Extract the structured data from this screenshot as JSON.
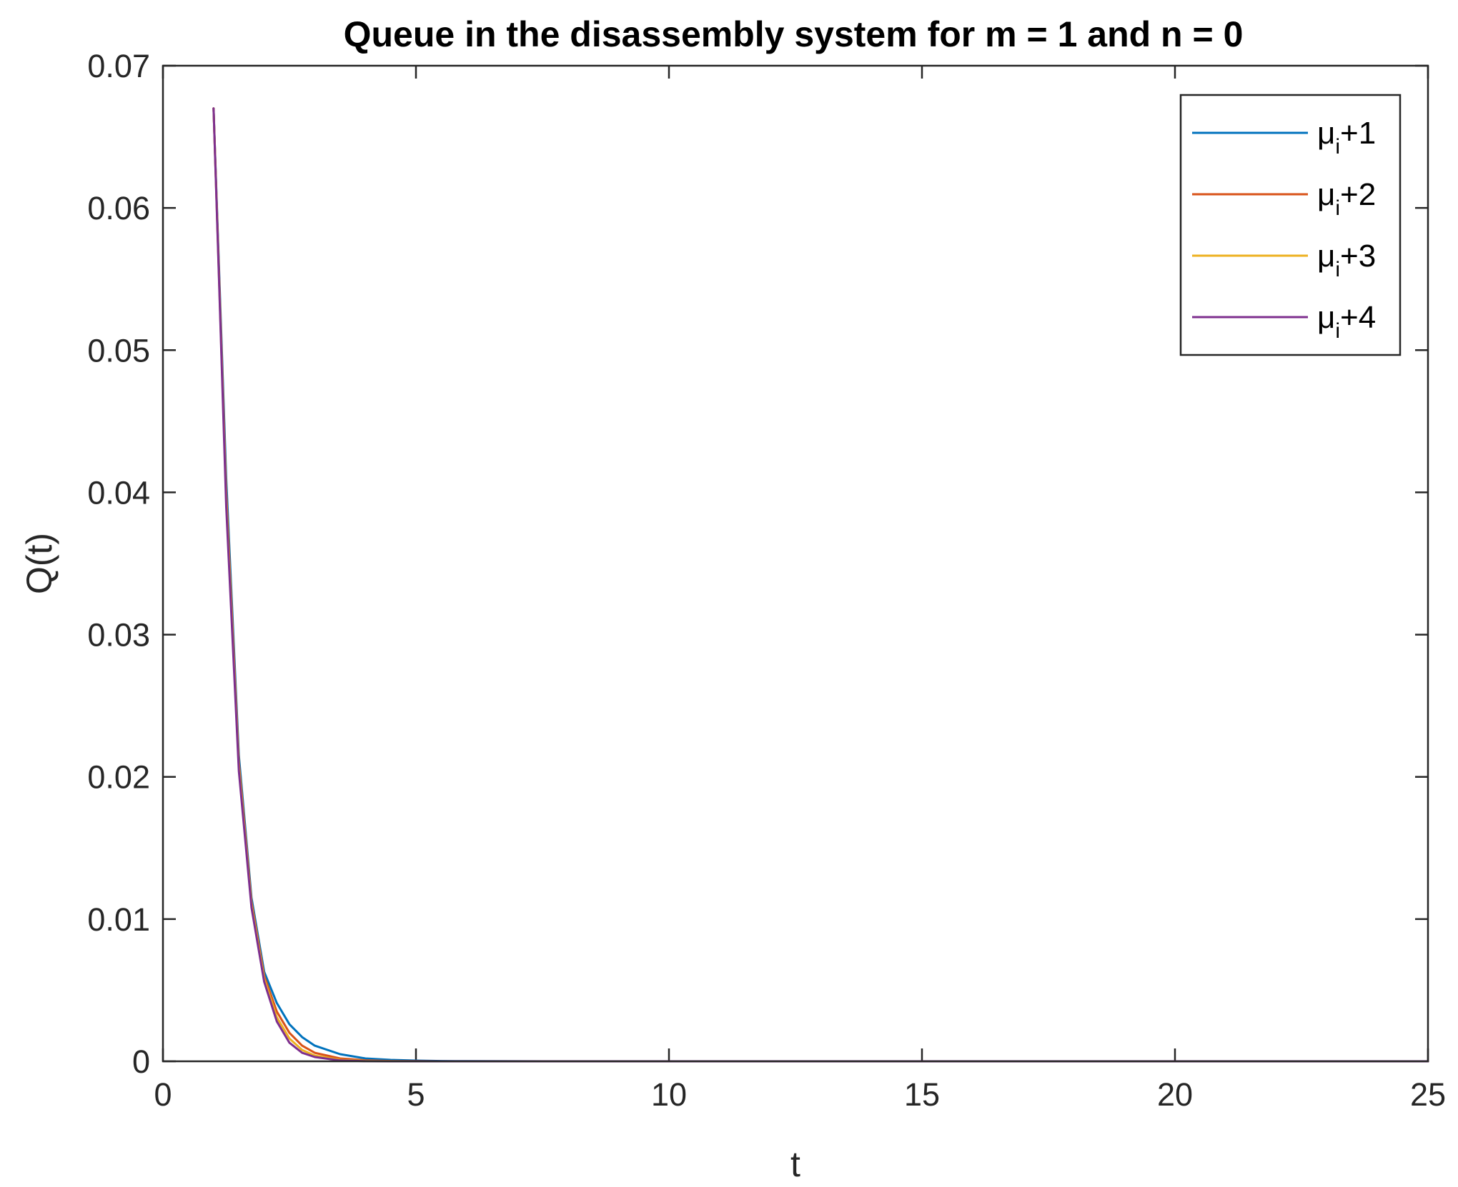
{
  "chart_data": {
    "type": "line",
    "title": "Queue in the disassembly system for m = 1 and n = 0",
    "xlabel": "t",
    "ylabel": "Q(t)",
    "xlim": [
      0,
      25
    ],
    "ylim": [
      0,
      0.07
    ],
    "xticks": [
      0,
      5,
      10,
      15,
      20,
      25
    ],
    "xtick_labels": [
      "0",
      "5",
      "10",
      "15",
      "20",
      "25"
    ],
    "yticks": [
      0,
      0.01,
      0.02,
      0.03,
      0.04,
      0.05,
      0.06,
      0.07
    ],
    "ytick_labels": [
      "0",
      "0.01",
      "0.02",
      "0.03",
      "0.04",
      "0.05",
      "0.06",
      "0.07"
    ],
    "grid": false,
    "legend_position": "top-right",
    "series": [
      {
        "name": "μi+1",
        "legend": {
          "base": "μ",
          "sub": "i",
          "suffix": "+1"
        },
        "color": "#0072BD",
        "x": [
          1.0,
          1.25,
          1.5,
          1.75,
          2.0,
          2.25,
          2.5,
          2.75,
          3.0,
          3.5,
          4.0,
          4.5,
          5.0,
          5.5,
          6.0,
          8.0,
          10.0,
          15.0,
          20.0,
          25.0
        ],
        "y": [
          0.067,
          0.041,
          0.0215,
          0.0115,
          0.0063,
          0.0041,
          0.0026,
          0.0017,
          0.0011,
          0.0005,
          0.0002,
          0.0001,
          5e-05,
          2e-05,
          1e-05,
          0.0,
          0.0,
          0.0,
          0.0,
          0.0
        ]
      },
      {
        "name": "μi+2",
        "legend": {
          "base": "μ",
          "sub": "i",
          "suffix": "+2"
        },
        "color": "#D95319",
        "x": [
          1.0,
          1.25,
          1.5,
          1.75,
          2.0,
          2.25,
          2.5,
          2.75,
          3.0,
          3.5,
          4.0,
          4.5,
          5.0,
          5.5,
          6.0,
          8.0,
          10.0,
          15.0,
          20.0,
          25.0
        ],
        "y": [
          0.067,
          0.04,
          0.021,
          0.0112,
          0.006,
          0.0035,
          0.002,
          0.0011,
          0.0006,
          0.0002,
          7e-05,
          2e-05,
          1e-05,
          0.0,
          0.0,
          0.0,
          0.0,
          0.0,
          0.0,
          0.0
        ]
      },
      {
        "name": "μi+3",
        "legend": {
          "base": "μ",
          "sub": "i",
          "suffix": "+3"
        },
        "color": "#EDB120",
        "x": [
          1.0,
          1.25,
          1.5,
          1.75,
          2.0,
          2.25,
          2.5,
          2.75,
          3.0,
          3.5,
          4.0,
          4.5,
          5.0,
          5.5,
          6.0,
          8.0,
          10.0,
          15.0,
          20.0,
          25.0
        ],
        "y": [
          0.067,
          0.0395,
          0.0207,
          0.011,
          0.0058,
          0.0031,
          0.0016,
          0.0008,
          0.0004,
          0.0001,
          3e-05,
          1e-05,
          0.0,
          0.0,
          0.0,
          0.0,
          0.0,
          0.0,
          0.0,
          0.0
        ]
      },
      {
        "name": "μi+4",
        "legend": {
          "base": "μ",
          "sub": "i",
          "suffix": "+4"
        },
        "color": "#7E2F8E",
        "x": [
          1.0,
          1.25,
          1.5,
          1.75,
          2.0,
          2.25,
          2.5,
          2.75,
          3.0,
          3.5,
          4.0,
          4.5,
          5.0,
          5.5,
          6.0,
          8.0,
          10.0,
          15.0,
          20.0,
          25.0
        ],
        "y": [
          0.067,
          0.039,
          0.0204,
          0.0108,
          0.0056,
          0.0028,
          0.0013,
          0.0006,
          0.0003,
          6e-05,
          1e-05,
          0.0,
          0.0,
          0.0,
          0.0,
          0.0,
          0.0,
          0.0,
          0.0,
          0.0
        ]
      }
    ]
  }
}
